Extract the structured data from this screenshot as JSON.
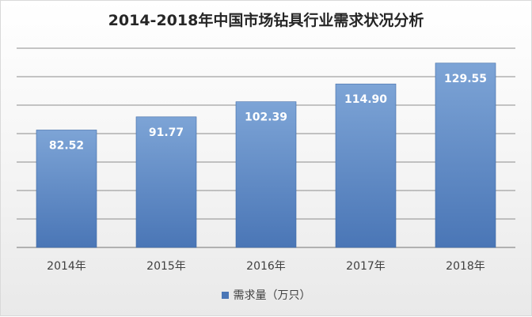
{
  "chart_data": {
    "type": "bar",
    "title": "2014-2018年中国市场钻具行业需求状况分析",
    "xlabel": "",
    "ylabel": "",
    "categories": [
      "2014年",
      "2015年",
      "2016年",
      "2017年",
      "2018年"
    ],
    "series": [
      {
        "name": "需求量（万只）",
        "values": [
          82.52,
          91.77,
          102.39,
          114.9,
          129.55
        ],
        "labels": [
          "82.52",
          "91.77",
          "102.39",
          "114.90",
          "129.55"
        ]
      }
    ],
    "ylim": [
      0,
      140
    ],
    "y_tick_step": 20,
    "y_tick_labels_shown": false,
    "grid": true,
    "legend_position": "bottom",
    "colors": {
      "bar_top": "#7da4d6",
      "bar_bottom": "#4a76b6",
      "bar_edge": "#3f6aa6",
      "gridline": "#8c8c8c",
      "data_label": "#ffffff"
    }
  }
}
